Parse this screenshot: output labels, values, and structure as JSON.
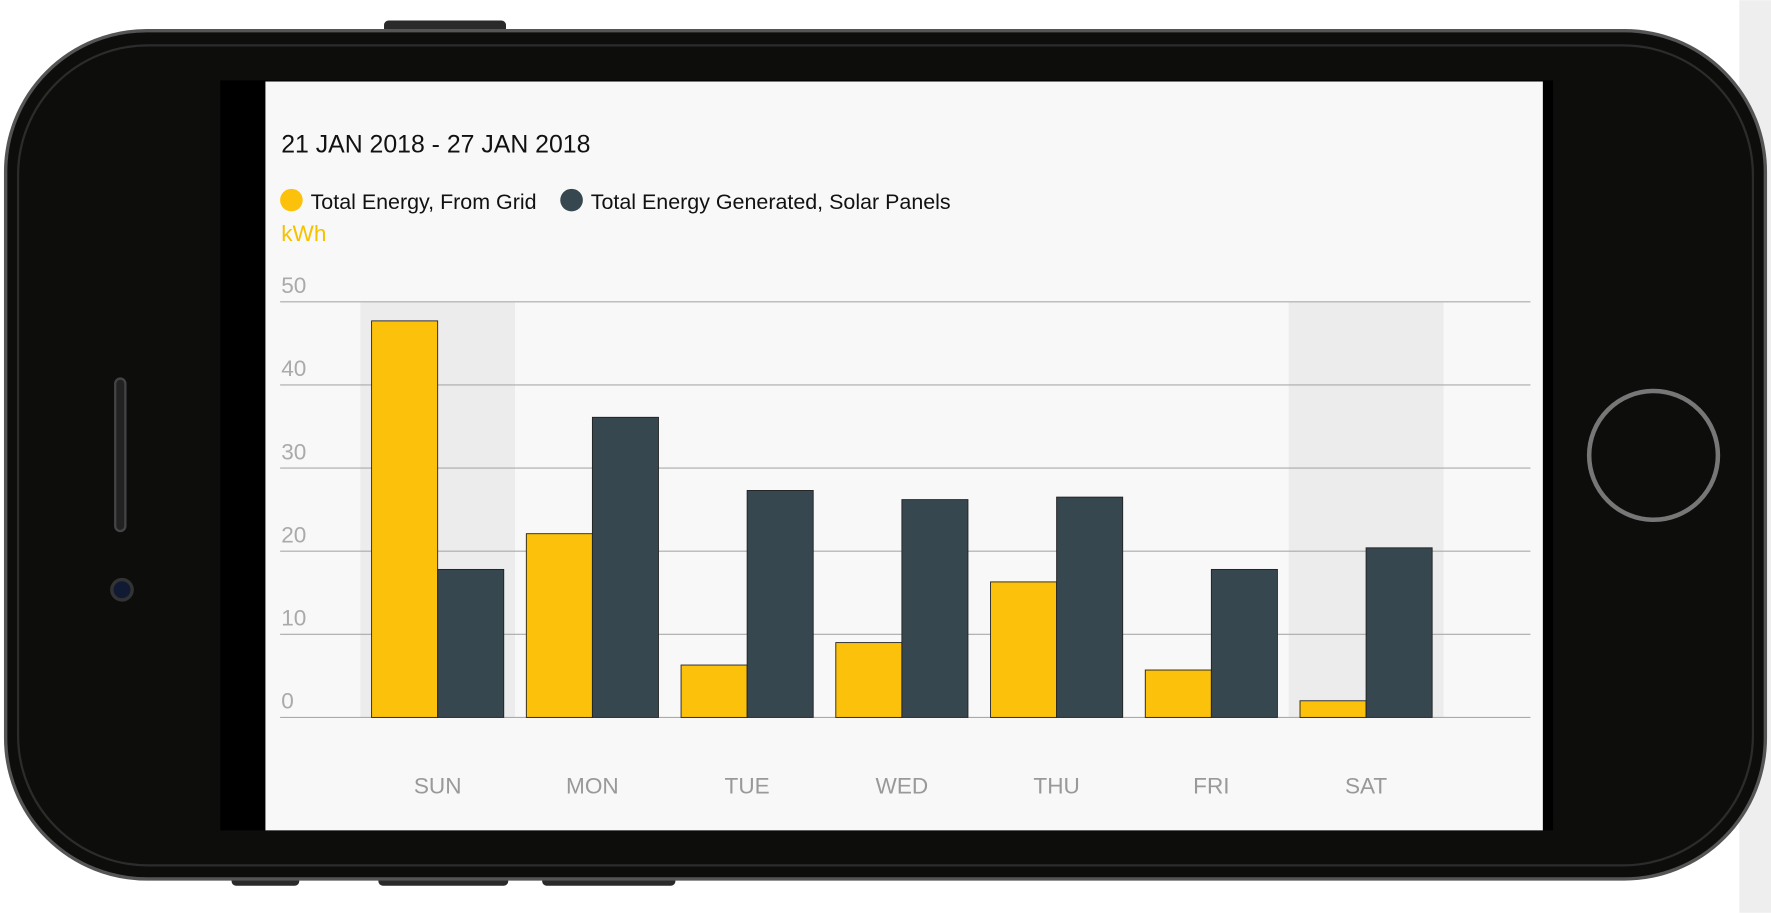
{
  "chart_data": {
    "type": "bar",
    "title": "21 JAN 2018 - 27 JAN 2018",
    "y_label": "kWh",
    "categories": [
      "SUN",
      "MON",
      "TUE",
      "WED",
      "THU",
      "FRI",
      "SAT"
    ],
    "shaded": [
      true,
      false,
      false,
      false,
      false,
      false,
      true
    ],
    "series": [
      {
        "name": "Total Energy, From Grid",
        "color": "#fcc10b",
        "values": [
          47.7,
          22.1,
          6.3,
          9.0,
          16.3,
          5.7,
          2.0
        ]
      },
      {
        "name": "Total Energy Generated, Solar Panels",
        "color": "#37474f",
        "values": [
          17.8,
          36.1,
          27.3,
          26.2,
          26.5,
          17.8,
          20.4
        ]
      }
    ],
    "ylim": [
      0,
      50
    ],
    "yticks": [
      0,
      10,
      20,
      30,
      40,
      50
    ],
    "grid": true
  }
}
